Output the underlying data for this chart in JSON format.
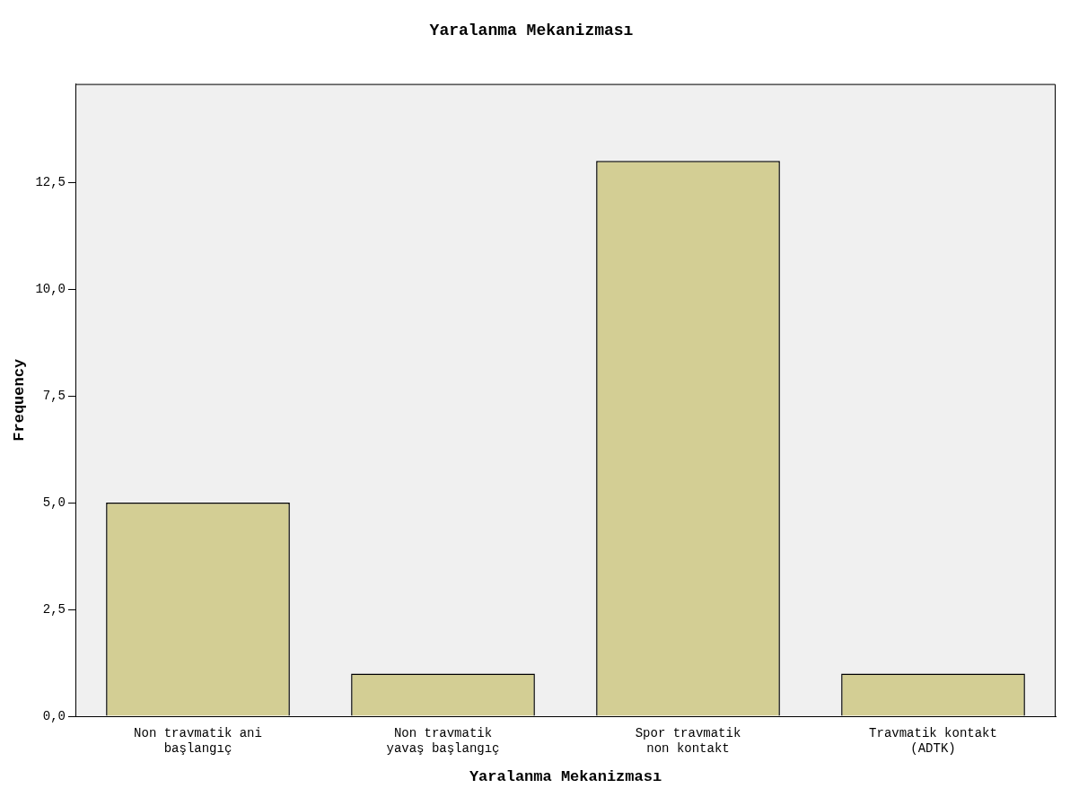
{
  "chart_data": {
    "type": "bar",
    "title": "Yaralanma Mekanizması",
    "xlabel": "Yaralanma Mekanizması",
    "ylabel": "Frequency",
    "categories": [
      "Non travmatik ani başlangıç",
      "Non travmatik yavaş başlangıç",
      "Spor travmatik non kontakt",
      "Travmatik kontakt (ADTK)"
    ],
    "values": [
      5,
      1,
      13,
      1
    ],
    "color": "#d3ce94",
    "ylim": [
      0,
      14.8
    ],
    "yticks": [
      {
        "value": 0,
        "label": "0,0"
      },
      {
        "value": 2.5,
        "label": "2,5"
      },
      {
        "value": 5,
        "label": "5,0"
      },
      {
        "value": 7.5,
        "label": "7,5"
      },
      {
        "value": 10,
        "label": "10,0"
      },
      {
        "value": 12.5,
        "label": "12,5"
      }
    ],
    "grid": false,
    "legend": false
  }
}
